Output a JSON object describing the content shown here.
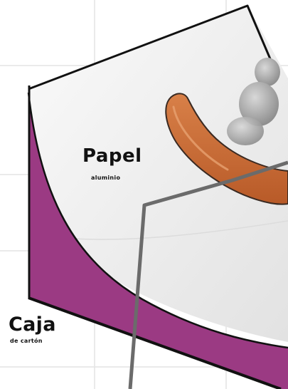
{
  "labels": {
    "foil_title": "Papel",
    "foil_subtitle": "aluminio",
    "box_title": "Caja",
    "box_subtitle": "de cartón"
  },
  "colors": {
    "background": "#ffffff",
    "grid": "#e4e4e4",
    "foil_fill": "#efefef",
    "box_fill": "#9b3a83",
    "sausage": "#c96a35",
    "sausage_outline": "#3a2a22",
    "skewer": "#6b6b6b",
    "steam": "#9c9c9c",
    "outline": "#111111"
  }
}
